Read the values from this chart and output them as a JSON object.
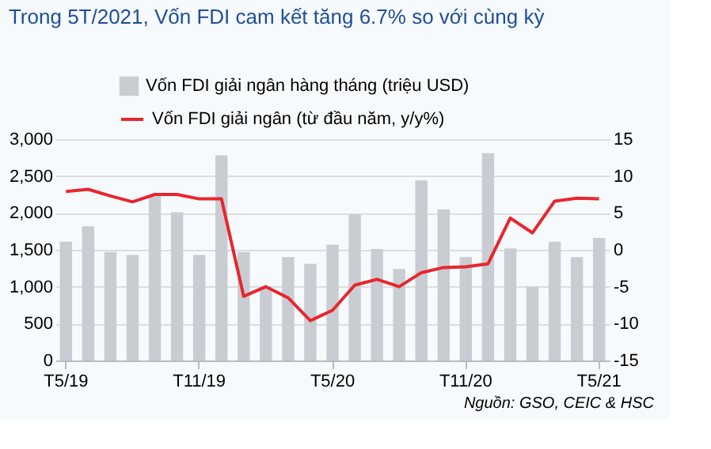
{
  "chart_data": {
    "type": "bar",
    "title": "Trong 5T/2021, Vốn FDI cam kết tăng 6.7% so với cùng kỳ",
    "categories": [
      "T5/19",
      null,
      null,
      null,
      null,
      null,
      "T11/19",
      null,
      null,
      null,
      null,
      null,
      "T5/20",
      null,
      null,
      null,
      null,
      null,
      "T11/20",
      null,
      null,
      null,
      null,
      null,
      "T5/21"
    ],
    "series": [
      {
        "name": "Vốn FDI giải ngân hàng tháng (triệu USD)",
        "color": "#c9cdd3",
        "values": [
          1610,
          1820,
          1470,
          1430,
          2250,
          2010,
          1430,
          2780,
          1470,
          1000,
          1400,
          1310,
          1570,
          1980,
          1510,
          1240,
          2440,
          2050,
          1400,
          2810,
          1520,
          1000,
          1610,
          1400,
          1660
        ]
      },
      {
        "name": "Vốn FDI giải ngân (từ đầu năm, y/y%)",
        "type": "line",
        "axis": "y2",
        "color": "#e8262e",
        "values": [
          7.9,
          8.2,
          7.3,
          6.5,
          7.5,
          7.5,
          6.9,
          6.9,
          -6.3,
          -5,
          -6.5,
          -9.6,
          -8.2,
          -4.8,
          -4,
          -5,
          -3.1,
          -2.4,
          -2.3,
          -1.9,
          4.3,
          2.3,
          6.6,
          7,
          6.9
        ]
      }
    ],
    "ylim": [
      0,
      3000
    ],
    "yticks": [
      0,
      500,
      {
        "value": 1000,
        "label": "1,000"
      },
      {
        "value": 1500,
        "label": "1,500"
      },
      {
        "value": 2000,
        "label": "2,000"
      },
      {
        "value": 2500,
        "label": "2,500"
      },
      {
        "value": 3000,
        "label": "3,000"
      }
    ],
    "y2lim": [
      -15,
      15
    ],
    "y2ticks": [
      -15,
      -10,
      -5,
      0,
      5,
      10,
      15
    ],
    "grid": "y",
    "legend": "top",
    "annotations": [
      "Nguồn: GSO, CEIC & HSC"
    ]
  }
}
